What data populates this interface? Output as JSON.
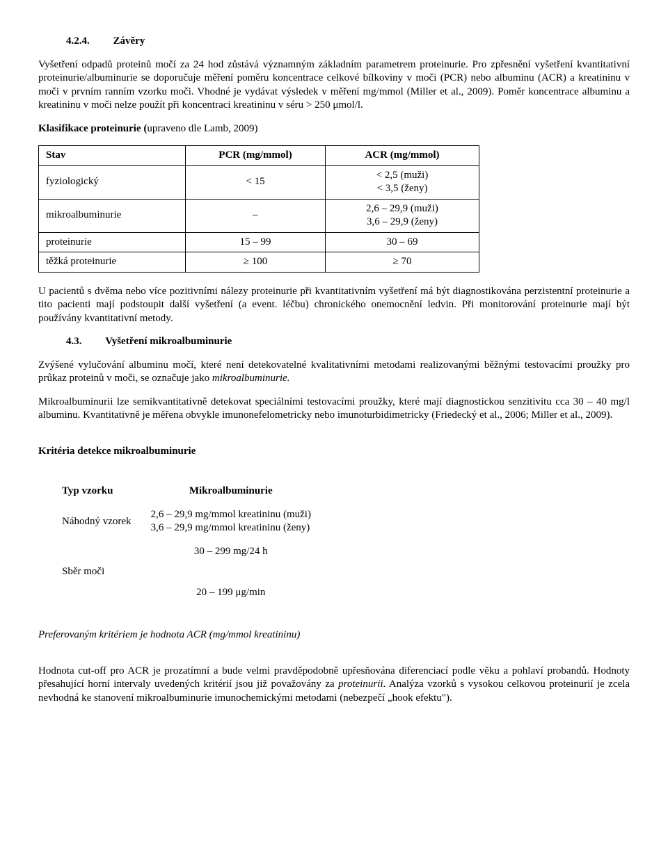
{
  "s424": {
    "heading_num": "4.2.4.",
    "heading_title": "Závěry",
    "p1": "Vyšetření odpadů proteinů močí za 24 hod zůstává významným základním parametrem proteinurie. Pro zpřesnění vyšetření kvantitativní proteinurie/albuminurie se doporučuje měření poměru koncentrace celkové bílkoviny v moči (PCR) nebo albuminu (ACR) a kreatininu v moči v prvním ranním vzorku moči. Vhodné je vydávat výsledek v měření  mg/mmol (Miller et al., 2009). Poměr koncentrace albuminu a kreatininu v moči nelze použít při koncentraci kreatininu v séru > 250 μmol/l.",
    "p2_bold": "Klasifikace proteinurie (",
    "p2_rest": "upraveno dle Lamb, 2009)"
  },
  "table1": {
    "headers": [
      "Stav",
      "PCR (mg/mmol)",
      "ACR (mg/mmol)"
    ],
    "rows": [
      [
        "fyziologický",
        "< 15",
        "< 2,5 (muži)\n< 3,5 (ženy)"
      ],
      [
        "mikroalbuminurie",
        "–",
        "2,6 – 29,9 (muži)\n3,6 – 29,9 (ženy)"
      ],
      [
        "proteinurie",
        "15 – 99",
        "30 – 69"
      ],
      [
        "těžká proteinurie",
        "≥ 100",
        "≥ 70"
      ]
    ]
  },
  "post_table1_p": "U pacientů s dvěma nebo více pozitivními nálezy proteinurie při kvantitativním vyšetření má být diagnostikována perzistentní proteinurie a tito pacienti mají podstoupit další vyšetření (a event. léčbu) chronického onemocnění ledvin. Při monitorování proteinurie mají být používány kvantitativní metody.",
  "s43": {
    "heading_num": "4.3.",
    "heading_title": "Vyšetření mikroalbuminurie",
    "p1a": "Zvýšené vylučování albuminu močí, které není detekovatelné kvalitativními metodami realizovanými běžnými testovacími proužky pro průkaz proteinů v moči, se označuje jako ",
    "p1b_italic": "mikroalbuminurie.",
    "p2": "Mikroalbuminurii lze semikvantitativně detekovat speciálními testovacími proužky, které mají diagnostickou senzitivitu cca 30 – 40 mg/l albuminu. Kvantitativně je měřena obvykle imunonefelometricky nebo imunoturbidimetricky (Friedecký et al., 2006; Miller et al., 2009)."
  },
  "criteria_heading": "Kritéria detekce mikroalbuminurie",
  "table2": {
    "headers": [
      "Typ vzorku",
      "Mikroalbuminurie"
    ],
    "rows": [
      [
        "Náhodný vzorek",
        "2,6 – 29,9 mg/mmol kreatininu (muži)\n3,6 – 29,9 mg/mmol kreatininu (ženy)"
      ],
      [
        "Sběr moči",
        "30 – 299 mg/24 h\n\n20 – 199 μg/min"
      ]
    ]
  },
  "preferred_italic": "Preferovaným kritériem je hodnota ACR (mg/mmol kreatininu)",
  "final_p_a": "Hodnota cut-off pro ACR je prozatímní a bude velmi pravděpodobně upřesňována diferenciací podle věku a pohlaví probandů. Hodnoty přesahující horní intervaly uvedených kritérií jsou již považovány za ",
  "final_p_b_italic": "proteinurii",
  "final_p_c": ". Analýza vzorků s vysokou celkovou proteinurií je zcela nevhodná ke stanovení mikroalbuminurie imunochemickými metodami (nebezpečí „hook efektu\")."
}
